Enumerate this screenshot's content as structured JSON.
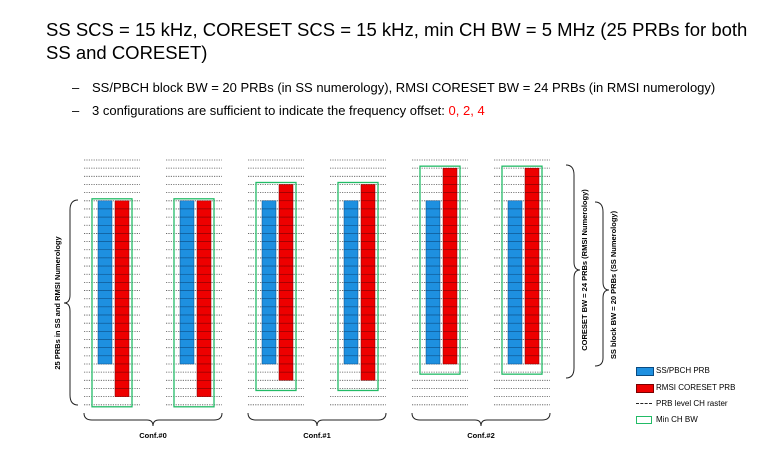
{
  "heading": {
    "title": "SS SCS = 15 kHz, CORESET SCS = 15 kHz, min CH BW = 5 MHz (25 PRBs for both SS and CORESET)",
    "bullet1": "SS/PBCH block BW = 20 PRBs (in SS numerology), RMSI CORESET BW = 24 PRBs (in RMSI numerology)",
    "bullet2_prefix": "3 configurations are sufficient to indicate the frequency offset: ",
    "bullet2_values": "0, 2, 4",
    "dash": "–"
  },
  "diagram": {
    "left_label": "25 PRBs in SS and RMSI Numerology",
    "coreset_label": "CORESET BW = 24 PRBs (RMSI Numerology)",
    "ssblock_label": "SS block BW = 20 PRBs (SS Numerology)",
    "configs": [
      {
        "label": "Conf.#0",
        "offsets": [
          0,
          0
        ]
      },
      {
        "label": "Conf.#1",
        "offsets": [
          2,
          2
        ]
      },
      {
        "label": "Conf.#2",
        "offsets": [
          4,
          4
        ]
      }
    ],
    "raster_lines": 30,
    "min_ch_bw_prbs": 25,
    "ss_prbs": 20,
    "coreset_prbs": 24
  },
  "legend": {
    "ss": "SS/PBCH PRB",
    "rmsi": "RMSI CORESET PRB",
    "raster": "PRB level CH raster",
    "minbw": "Min CH BW"
  },
  "colors": {
    "ss": "#1e90e0",
    "rmsi": "#ee0000",
    "green": "#22bb66",
    "raster": "#555555"
  }
}
